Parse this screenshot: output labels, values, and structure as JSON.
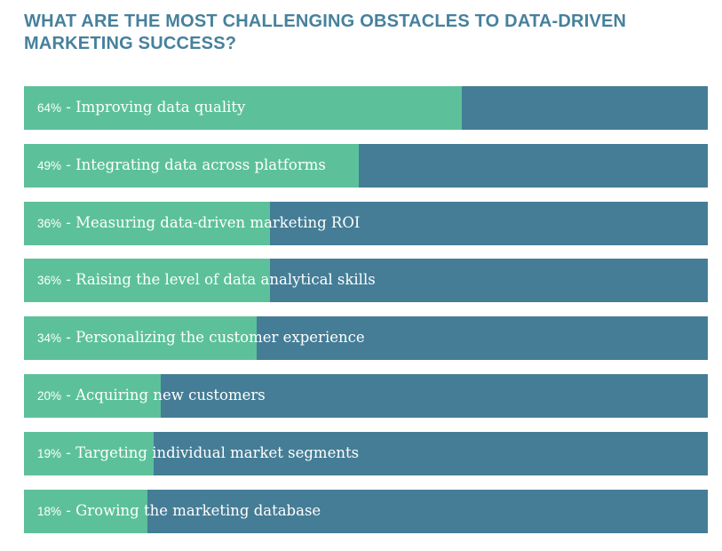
{
  "title": "WHAT ARE THE MOST CHALLENGING OBSTACLES TO DATA-DRIVEN MARKETING SUCCESS?",
  "colors": {
    "title": "#46819c",
    "fill": "#5cc19a",
    "track": "#457d96",
    "label": "#ffffff"
  },
  "chart_data": {
    "type": "bar",
    "orientation": "horizontal",
    "title": "WHAT ARE THE MOST CHALLENGING OBSTACLES TO DATA-DRIVEN MARKETING SUCCESS?",
    "value_max": 100,
    "unit": "%",
    "categories": [
      "Improving data quality",
      "Integrating data across platforms",
      "Measuring data-driven marketing ROI",
      "Raising the level of data analytical skills",
      "Personalizing the customer experience",
      "Acquiring new customers",
      "Targeting individual market segments",
      "Growing the marketing database"
    ],
    "values": [
      64,
      49,
      36,
      36,
      34,
      20,
      19,
      18
    ],
    "value_labels": [
      "64%",
      "49%",
      "36%",
      "36%",
      "34%",
      "20%",
      "19%",
      "18%"
    ],
    "separator": " - "
  }
}
